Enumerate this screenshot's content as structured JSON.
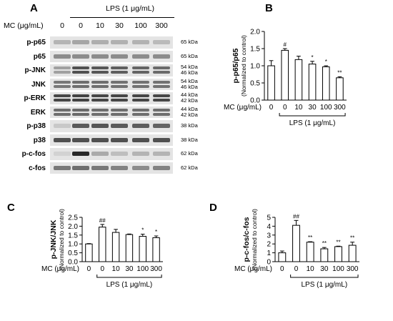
{
  "panel_a": {
    "letter": "A",
    "lps_header": "LPS (1 μg/mL)",
    "mc_label": "MC (μg/mL)",
    "mc_doses": [
      "0",
      "0",
      "10",
      "30",
      "100",
      "300"
    ],
    "rows": [
      {
        "label": "p-p65",
        "kda": [
          "65 kDa"
        ]
      },
      {
        "label": "p65",
        "kda": [
          "65 kDa"
        ]
      },
      {
        "label": "p-JNK",
        "kda": [
          "54 kDa",
          "46 kDa"
        ]
      },
      {
        "label": "JNK",
        "kda": [
          "54 kDa",
          "46 kDa"
        ]
      },
      {
        "label": "p-ERK",
        "kda": [
          "44 kDa",
          "42 kDa"
        ]
      },
      {
        "label": "ERK",
        "kda": [
          "44 kDa",
          "42 kDa"
        ]
      },
      {
        "label": "p-p38",
        "kda": [
          "38 kDa"
        ]
      },
      {
        "label": "p38",
        "kda": [
          "38 kDa"
        ]
      },
      {
        "label": "p-c-fos",
        "kda": [
          "62 kDa"
        ]
      },
      {
        "label": "c-fos",
        "kda": [
          "62 kDa"
        ]
      }
    ],
    "band_intensity": [
      [
        0.25,
        0.32,
        0.28,
        0.27,
        0.26,
        0.22
      ],
      [
        0.45,
        0.45,
        0.45,
        0.45,
        0.45,
        0.45
      ],
      [
        0.35,
        0.75,
        0.72,
        0.68,
        0.65,
        0.62
      ],
      [
        0.55,
        0.6,
        0.6,
        0.58,
        0.58,
        0.58
      ],
      [
        0.8,
        0.82,
        0.8,
        0.8,
        0.8,
        0.8
      ],
      [
        0.6,
        0.62,
        0.6,
        0.6,
        0.6,
        0.6
      ],
      [
        0.15,
        0.7,
        0.72,
        0.7,
        0.68,
        0.65
      ],
      [
        0.75,
        0.75,
        0.75,
        0.75,
        0.75,
        0.75
      ],
      [
        0.1,
        0.95,
        0.3,
        0.2,
        0.25,
        0.25
      ],
      [
        0.55,
        0.6,
        0.55,
        0.5,
        0.45,
        0.5
      ]
    ]
  },
  "chart_data": [
    {
      "panel": "B",
      "type": "bar",
      "ylabel": "p-p65/p65",
      "ylabel_sub": "(Normalized to control)",
      "categories": [
        "0",
        "0",
        "10",
        "30",
        "100",
        "300"
      ],
      "values": [
        1.0,
        1.45,
        1.18,
        1.05,
        0.97,
        0.65
      ],
      "errors": [
        0.15,
        0.05,
        0.1,
        0.08,
        0.03,
        0.03
      ],
      "annotations": [
        "",
        "#",
        "",
        "*",
        "*",
        "**"
      ],
      "ylim": [
        0,
        2.0
      ],
      "yticks": [
        "0.0",
        "0.5",
        "1.0",
        "1.5",
        "2.0"
      ],
      "mc_label": "MC (μg/mL)",
      "lps_label": "LPS (1 μg/mL)"
    },
    {
      "panel": "C",
      "type": "bar",
      "ylabel": "p-JNK/JNK",
      "ylabel_sub": "(Normalized to control)",
      "categories": [
        "0",
        "0",
        "10",
        "30",
        "100",
        "300"
      ],
      "values": [
        1.0,
        1.95,
        1.65,
        1.53,
        1.43,
        1.35
      ],
      "errors": [
        0.02,
        0.15,
        0.17,
        0.03,
        0.12,
        0.1
      ],
      "annotations": [
        "",
        "##",
        "",
        "",
        "*",
        "*"
      ],
      "ylim": [
        0,
        2.5
      ],
      "yticks": [
        "0.0",
        "0.5",
        "1.0",
        "1.5",
        "2.0",
        "2.5"
      ],
      "mc_label": "MC (μg/mL)",
      "lps_label": "LPS (1 μg/mL)"
    },
    {
      "panel": "D",
      "type": "bar",
      "ylabel": "p-c-fos/c-fos",
      "ylabel_sub": "(Normalized to control)",
      "categories": [
        "0",
        "0",
        "10",
        "30",
        "100",
        "300"
      ],
      "values": [
        1.0,
        4.1,
        2.2,
        1.45,
        1.7,
        1.85
      ],
      "errors": [
        0.2,
        0.55,
        0.05,
        0.15,
        0.05,
        0.35
      ],
      "annotations": [
        "",
        "##",
        "**",
        "**",
        "**",
        "**"
      ],
      "ylim": [
        0,
        5
      ],
      "yticks": [
        "0",
        "1",
        "2",
        "3",
        "4",
        "5"
      ],
      "mc_label": "MC (μg/mL)",
      "lps_label": "LPS (1 μg/mL)"
    }
  ]
}
